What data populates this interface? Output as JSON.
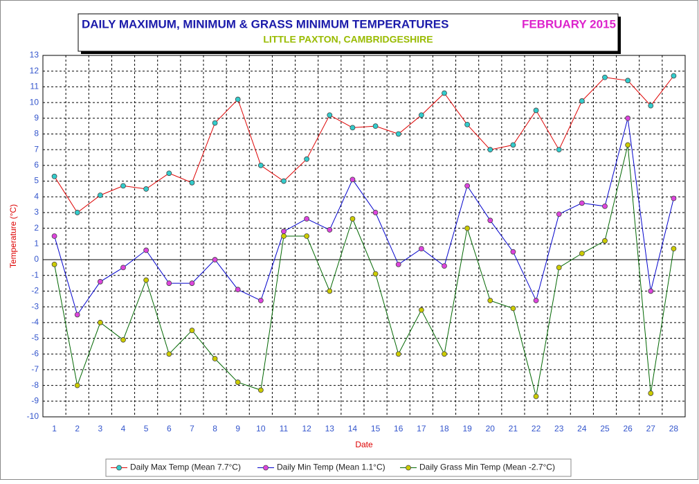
{
  "chart_data": {
    "type": "line",
    "title": "DAILY MAXIMUM, MINIMUM & GRASS MINIMUM TEMPERATURES",
    "title_right": "FEBRUARY 2015",
    "subtitle": "LITTLE PAXTON, CAMBRIDGESHIRE",
    "x_label": "Date",
    "y_label": "Temperature (°C)",
    "categories": [
      "1",
      "2",
      "3",
      "4",
      "5",
      "6",
      "7",
      "8",
      "9",
      "10",
      "11",
      "12",
      "13",
      "14",
      "15",
      "16",
      "17",
      "18",
      "19",
      "20",
      "21",
      "22",
      "23",
      "24",
      "25",
      "26",
      "27",
      "28"
    ],
    "series": [
      {
        "name": "Daily Max Temp (Mean 7.7°C)",
        "color": "#dd0000",
        "marker_color": "#33cccc",
        "values": [
          5.3,
          3.0,
          4.1,
          4.7,
          4.5,
          5.5,
          4.9,
          8.7,
          10.2,
          6.0,
          5.0,
          6.4,
          9.2,
          8.4,
          8.5,
          8.0,
          9.2,
          10.6,
          8.6,
          7.0,
          7.3,
          9.5,
          7.0,
          10.1,
          11.6,
          11.4,
          9.8,
          11.7
        ]
      },
      {
        "name": "Daily Min Temp (Mean 1.1°C)",
        "color": "#0000cc",
        "marker_color": "#dd44dd",
        "values": [
          1.5,
          -3.5,
          -1.4,
          -0.5,
          0.6,
          -1.5,
          -1.5,
          0.0,
          -1.9,
          -2.6,
          1.8,
          2.6,
          1.9,
          5.1,
          3.0,
          -0.3,
          0.7,
          -0.4,
          4.7,
          2.5,
          0.5,
          -2.6,
          2.9,
          3.6,
          3.4,
          9.0,
          -2.0,
          3.9
        ]
      },
      {
        "name": "Daily Grass Min Temp (Mean -2.7°C)",
        "color": "#006600",
        "marker_color": "#cccc00",
        "values": [
          -0.3,
          -8.0,
          -4.0,
          -5.1,
          -1.3,
          -6.0,
          -4.5,
          -6.3,
          -7.8,
          -8.3,
          1.5,
          1.5,
          -2.0,
          2.6,
          -0.9,
          -6.0,
          -3.2,
          -6.0,
          2.0,
          -2.6,
          -3.1,
          -8.7,
          -0.5,
          0.4,
          1.2,
          7.3,
          -8.5,
          0.7
        ]
      }
    ],
    "ylim": [
      -10,
      13
    ],
    "yticks": [
      -10,
      -9,
      -8,
      -7,
      -6,
      -5,
      -4,
      -3,
      -2,
      -1,
      0,
      1,
      2,
      3,
      4,
      5,
      6,
      7,
      8,
      9,
      10,
      11,
      12,
      13
    ],
    "grid": true
  }
}
